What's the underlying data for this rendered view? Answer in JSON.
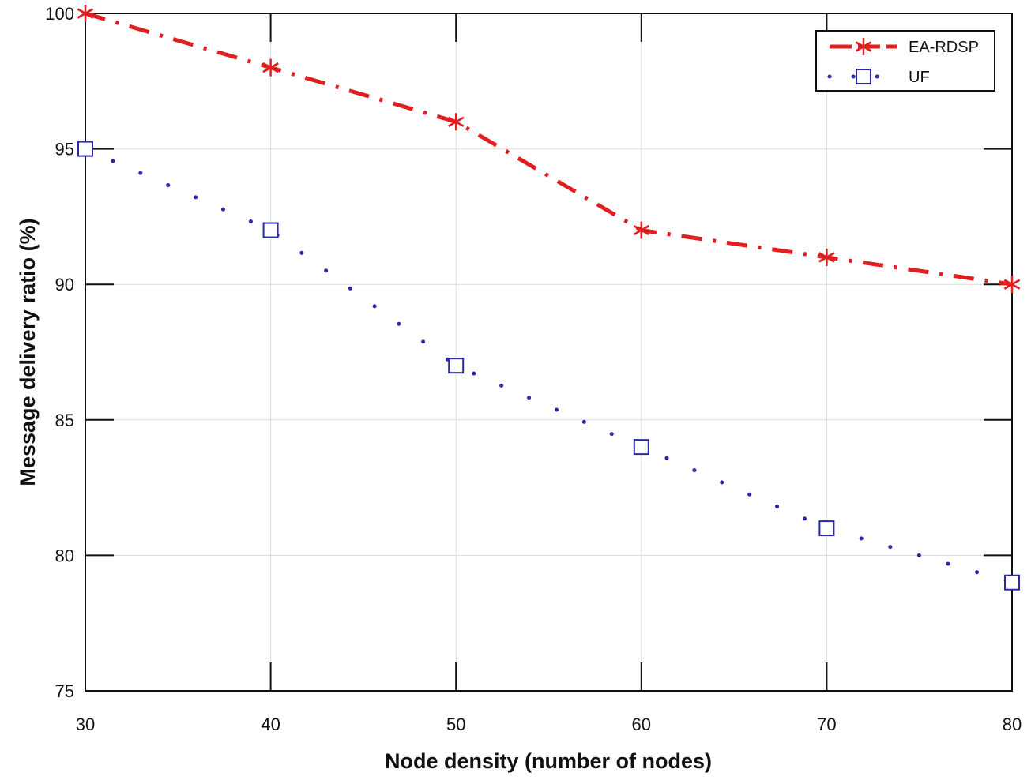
{
  "chart_data": {
    "type": "line",
    "title": "",
    "xlabel": "Node density (number of nodes)",
    "ylabel": "Message delivery ratio (%)",
    "x": [
      30,
      40,
      50,
      60,
      70,
      80
    ],
    "xlim": [
      30,
      80
    ],
    "ylim": [
      75,
      100
    ],
    "xticks": [
      "30",
      "40",
      "50",
      "60",
      "70",
      "80"
    ],
    "yticks": [
      "75",
      "80",
      "85",
      "90",
      "95",
      "100"
    ],
    "grid": true,
    "legend_position": "top-right",
    "series": [
      {
        "name": "EA-RDSP",
        "values": [
          100,
          98,
          96,
          92,
          91,
          90
        ],
        "color": "#e02020",
        "line_style": "dash-dot",
        "marker": "asterisk"
      },
      {
        "name": "UF",
        "values": [
          95,
          92,
          87,
          84,
          81,
          79
        ],
        "color": "#2a2aa8",
        "line_style": "dotted",
        "marker": "square"
      }
    ]
  }
}
